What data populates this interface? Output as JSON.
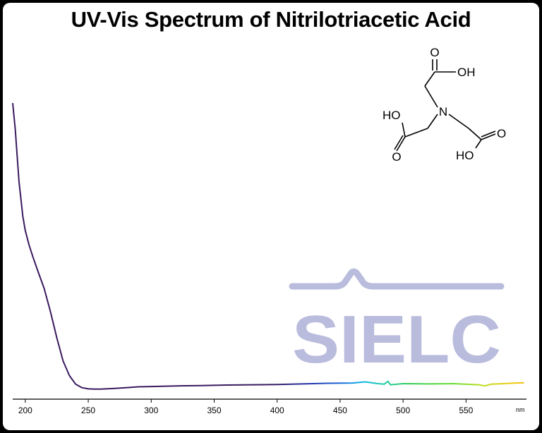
{
  "chart_data": {
    "type": "line",
    "title": "UV-Vis Spectrum of Nitrilotriacetic Acid",
    "xlabel": "nm",
    "ylabel": "",
    "xlim": [
      190,
      598
    ],
    "ylim": [
      0,
      1
    ],
    "xticks": [
      200,
      250,
      300,
      350,
      400,
      450,
      500,
      550
    ],
    "grid": false,
    "series": [
      {
        "x": [
          190,
          192,
          195,
          198,
          200,
          203,
          206,
          210,
          215,
          220,
          225,
          230,
          235,
          240,
          245,
          250,
          255,
          260,
          270,
          280,
          290,
          300,
          320,
          340,
          360,
          380,
          400,
          420,
          440,
          460,
          470,
          480,
          485,
          488,
          490,
          500,
          520,
          540,
          560,
          565,
          570,
          580,
          590,
          596
        ],
        "y": [
          0.99,
          0.9,
          0.72,
          0.6,
          0.55,
          0.5,
          0.46,
          0.41,
          0.35,
          0.27,
          0.18,
          0.1,
          0.05,
          0.02,
          0.008,
          0.004,
          0.003,
          0.003,
          0.005,
          0.008,
          0.011,
          0.012,
          0.014,
          0.015,
          0.017,
          0.018,
          0.019,
          0.021,
          0.023,
          0.024,
          0.028,
          0.022,
          0.02,
          0.03,
          0.018,
          0.022,
          0.021,
          0.022,
          0.018,
          0.014,
          0.02,
          0.022,
          0.024,
          0.025
        ]
      }
    ]
  },
  "molecule": {
    "atoms": {
      "o_top": "O",
      "oh_top": "OH",
      "n": "N",
      "ho_left": "HO",
      "o_left": "O",
      "o_right": "O",
      "ho_right": "HO"
    }
  },
  "watermark": {
    "text": "SIELC",
    "color": "#b9bcdc"
  }
}
